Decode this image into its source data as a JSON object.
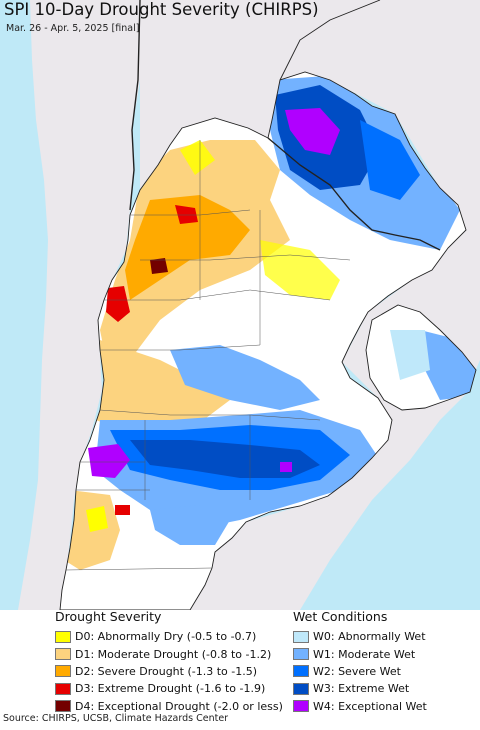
{
  "header": {
    "title": "SPI 10-Day Drought Severity (CHIRPS)",
    "subtitle": "Mar. 26 - Apr. 5, 2025 [final]"
  },
  "map": {
    "ocean_color": "#bfe9f7",
    "neighbor_land_color": "#ebe8ec",
    "normal_land_color": "#ffffff",
    "border_color": "#222222"
  },
  "legend_dry": {
    "title": "Drought Severity",
    "items": [
      {
        "label": "D0: Abnormally Dry (-0.5 to -0.7)",
        "color": "#ffff00"
      },
      {
        "label": "D1: Moderate Drought (-0.8 to -1.2)",
        "color": "#fcd37f"
      },
      {
        "label": "D2: Severe Drought (-1.3 to -1.5)",
        "color": "#ffaa00"
      },
      {
        "label": "D3: Extreme Drought (-1.6 to -1.9)",
        "color": "#e60000"
      },
      {
        "label": "D4: Exceptional Drought (-2.0 or less)",
        "color": "#730000"
      }
    ]
  },
  "legend_wet": {
    "title": "Wet Conditions",
    "items": [
      {
        "label": "W0: Abnormally Wet",
        "color": "#bfe8fa"
      },
      {
        "label": "W1: Moderate Wet",
        "color": "#73b2ff"
      },
      {
        "label": "W2: Severe Wet",
        "color": "#0070ff"
      },
      {
        "label": "W3: Extreme Wet",
        "color": "#004dc4"
      },
      {
        "label": "W4: Exceptional Wet",
        "color": "#b000ff"
      }
    ]
  },
  "source": "Source: CHIRPS, UCSB, Climate Hazards Center"
}
